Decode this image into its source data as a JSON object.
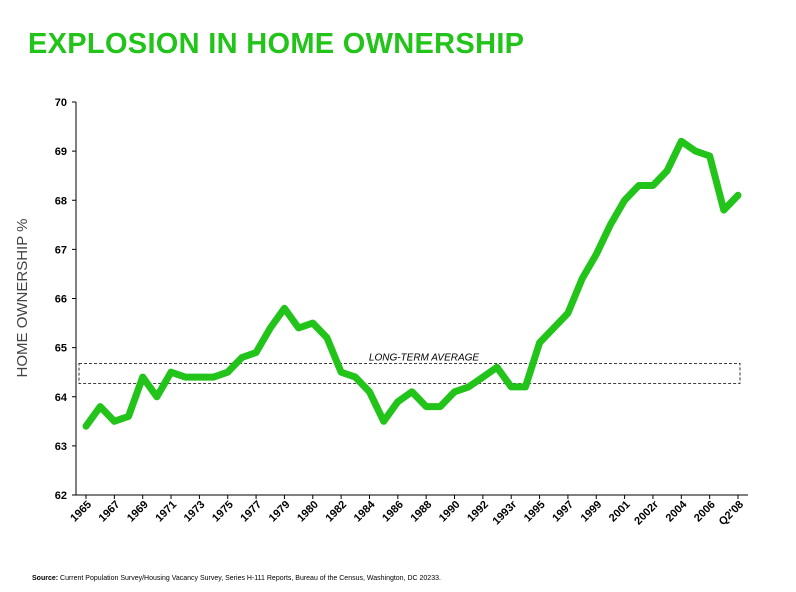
{
  "title": "EXPLOSION IN HOME OWNERSHIP",
  "source_label": "Source:",
  "source_text": "Current Population Survey/Housing Vacancy Survey, Series H-111 Reports, Bureau of the Census, Washington, DC 20233.",
  "colors": {
    "title": "#22c41a",
    "line": "#22c41a"
  },
  "chart_data": {
    "type": "line",
    "title": "EXPLOSION IN HOME OWNERSHIP",
    "ylabel": "HOME OWNERSHIP %",
    "xlabel": "",
    "ylim": [
      62,
      70
    ],
    "yticks": [
      62,
      63,
      64,
      65,
      66,
      67,
      68,
      69,
      70
    ],
    "grid": false,
    "x_tick_labels": [
      "1965",
      "1967",
      "1969",
      "1971",
      "1973",
      "1975",
      "1977",
      "1979",
      "1980",
      "1982",
      "1984",
      "1986",
      "1988",
      "1990",
      "1992",
      "1993r",
      "1995",
      "1997",
      "1999",
      "2001",
      "2002r",
      "2004",
      "2006",
      "Q2'08"
    ],
    "series": [
      {
        "values": [
          63.4,
          63.8,
          63.5,
          63.6,
          64.4,
          64.0,
          64.5,
          64.4,
          64.4,
          64.4,
          64.5,
          64.8,
          64.9,
          65.4,
          65.8,
          65.4,
          65.5,
          65.2,
          64.5,
          64.4,
          64.1,
          63.5,
          63.9,
          64.1,
          63.8,
          63.8,
          64.1,
          64.2,
          64.4,
          64.6,
          64.2,
          64.2,
          65.1,
          65.4,
          65.7,
          66.4,
          66.9,
          67.5,
          68.0,
          68.3,
          68.3,
          68.6,
          69.2,
          69.0,
          68.9,
          67.8,
          68.1
        ]
      }
    ],
    "annotations": [
      {
        "text": "LONG-TERM AVERAGE",
        "y_low": 64.27,
        "y_high": 64.68
      }
    ]
  }
}
